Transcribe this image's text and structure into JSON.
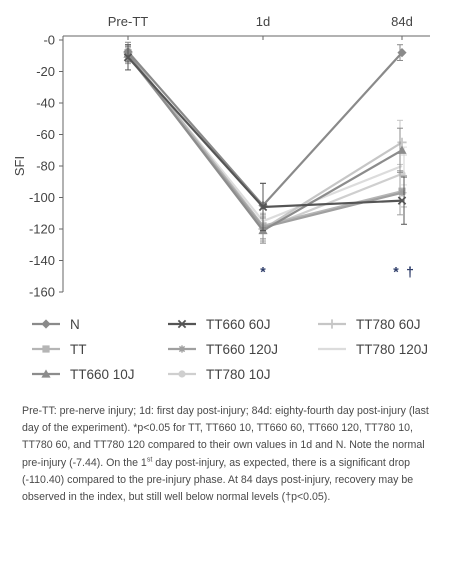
{
  "chart_data": {
    "type": "line",
    "title": "",
    "xlabel": "",
    "ylabel": "SFI",
    "categories": [
      "Pre-TT",
      "1d",
      "84d"
    ],
    "ylim": [
      -160,
      0
    ],
    "yticks": [
      0,
      -20,
      -40,
      -60,
      -80,
      -100,
      -120,
      -140,
      -160
    ],
    "ytick_labels": [
      "-0",
      "-20",
      "-40",
      "-60",
      "-80",
      "-100",
      "-120",
      "-140",
      "-160"
    ],
    "grid": false,
    "legend_position": "bottom",
    "series": [
      {
        "name": "N",
        "values": [
          -7.44,
          -105,
          -8
        ],
        "errors": [
          6,
          14,
          5
        ],
        "color": "#8a8a8a",
        "marker": "diamond"
      },
      {
        "name": "TT",
        "values": [
          -8,
          -118,
          -96
        ],
        "errors": [
          5,
          8,
          10
        ],
        "color": "#b5b5b5",
        "marker": "square"
      },
      {
        "name": "TT660 10J",
        "values": [
          -9,
          -121,
          -70
        ],
        "errors": [
          5,
          8,
          14
        ],
        "color": "#8c8c8c",
        "marker": "triangle"
      },
      {
        "name": "TT660 60J",
        "values": [
          -11,
          -106,
          -102
        ],
        "errors": [
          8,
          15,
          15
        ],
        "color": "#555555",
        "marker": "x"
      },
      {
        "name": "TT660 120J",
        "values": [
          -10,
          -119,
          -97
        ],
        "errors": [
          5,
          8,
          14
        ],
        "color": "#a0a0a0",
        "marker": "asterisk"
      },
      {
        "name": "TT780 10J",
        "values": [
          -9,
          -120,
          -85
        ],
        "errors": [
          5,
          8,
          12
        ],
        "color": "#cfcfcf",
        "marker": "circle"
      },
      {
        "name": "TT780 60J",
        "values": [
          -8,
          -120,
          -65
        ],
        "errors": [
          5,
          8,
          14
        ],
        "color": "#c6c6c6",
        "marker": "plus"
      },
      {
        "name": "TT780 120J",
        "values": [
          -9,
          -115,
          -80
        ],
        "errors": [
          5,
          8,
          12
        ],
        "color": "#dcdcdc",
        "marker": "none"
      }
    ],
    "annotations": [
      {
        "text": "*",
        "category": "1d",
        "y": -147,
        "color": "#2b3a67"
      },
      {
        "text": "*",
        "category": "84d",
        "y": -147,
        "color": "#2b3a67"
      },
      {
        "text": "†",
        "category": "84d",
        "y": -147,
        "color": "#2b3a67"
      }
    ]
  },
  "caption": {
    "l1": "Pre-TT: pre-nerve injury; 1d: first day post-injury; 84d: eighty-fourth day post-injury (last",
    "l2": "day of the experiment). *p<0.05 for TT, TT660 10, TT660 60, TT660 120, TT780 10,",
    "l3": "TT780 60, and TT780 120 compared to their own values in 1d and N. Note the normal",
    "l4_pre": "pre-injury (-7.44). On the 1",
    "l4_sup": "st",
    "l4_post": " day post-injury, as expected, there is a significant drop",
    "l5": "(-110.40) compared to the pre-injury phase. At 84 days post-injury, recovery may be",
    "l6": "observed in the index, but still well below normal levels (†p<0.05)."
  }
}
